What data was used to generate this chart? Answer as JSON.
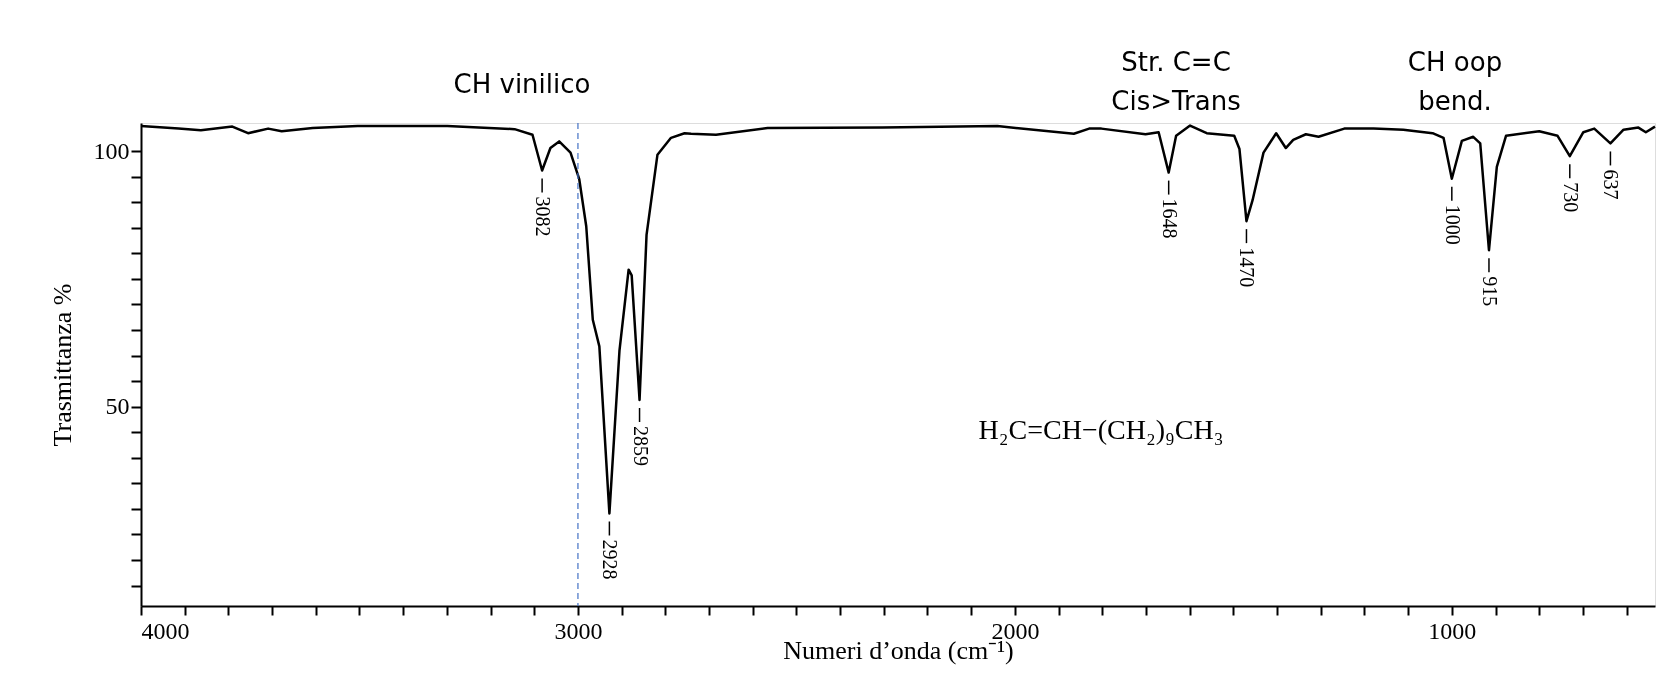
{
  "chart_data": {
    "type": "line",
    "xlabel": "Numeri d’onda (cm⁻¹)",
    "ylabel": "Trasmittanza %",
    "x": [
      4000,
      3914,
      3863,
      3791,
      3755,
      3709,
      3678,
      3607,
      3504,
      3299,
      3145,
      3104,
      3082,
      3063,
      3043,
      3017,
      2997,
      2981,
      2966,
      2951,
      2928,
      2905,
      2884,
      2877,
      2859,
      2843,
      2818,
      2787,
      2756,
      2741,
      2684,
      2566,
      2303,
      2040,
      1865,
      1830,
      1802,
      1701,
      1671,
      1648,
      1631,
      1599,
      1561,
      1498,
      1486,
      1470,
      1456,
      1431,
      1402,
      1380,
      1363,
      1334,
      1305,
      1246,
      1179,
      1111,
      1044,
      1019,
      1000,
      977,
      951,
      935,
      915,
      897,
      876,
      800,
      758,
      730,
      699,
      674,
      637,
      607,
      573,
      556,
      535
    ],
    "series": [
      {
        "color": "#000000",
        "values": [
          104.9,
          104.4,
          104.1,
          104.8,
          103.5,
          104.4,
          103.9,
          104.5,
          104.9,
          104.9,
          104.3,
          103.2,
          96.2,
          100.6,
          101.9,
          99.7,
          94.5,
          85.3,
          67.0,
          61.8,
          29.1,
          60.9,
          76.8,
          75.7,
          51.3,
          83.6,
          99.3,
          102.6,
          103.5,
          103.4,
          103.2,
          104.5,
          104.6,
          104.9,
          103.4,
          104.4,
          104.4,
          103.3,
          103.7,
          95.8,
          103.0,
          105.0,
          103.5,
          103.0,
          100.4,
          86.3,
          90.4,
          99.7,
          103.5,
          100.6,
          102.2,
          103.3,
          102.8,
          104.4,
          104.4,
          104.2,
          103.5,
          102.6,
          94.6,
          102.0,
          102.8,
          101.5,
          80.6,
          96.9,
          103.0,
          103.9,
          103.0,
          99.0,
          103.7,
          104.4,
          101.5,
          104.2,
          104.6,
          103.7,
          104.8
        ]
      }
    ],
    "xlim": [
      4000,
      535
    ],
    "xticks": [
      4000,
      {
        "value": 3900,
        "label": null
      },
      {
        "value": 3800,
        "label": null
      },
      {
        "value": 3700,
        "label": null
      },
      {
        "value": 3600,
        "label": null
      },
      {
        "value": 3500,
        "label": null
      },
      {
        "value": 3400,
        "label": null
      },
      {
        "value": 3300,
        "label": null
      },
      {
        "value": 3200,
        "label": null
      },
      {
        "value": 3100,
        "label": null
      },
      3000,
      {
        "value": 2900,
        "label": null
      },
      {
        "value": 2800,
        "label": null
      },
      {
        "value": 2700,
        "label": null
      },
      {
        "value": 2600,
        "label": null
      },
      {
        "value": 2500,
        "label": null
      },
      {
        "value": 2400,
        "label": null
      },
      {
        "value": 2300,
        "label": null
      },
      {
        "value": 2200,
        "label": null
      },
      {
        "value": 2100,
        "label": null
      },
      2000,
      {
        "value": 1900,
        "label": null
      },
      {
        "value": 1800,
        "label": null
      },
      {
        "value": 1700,
        "label": null
      },
      {
        "value": 1600,
        "label": null
      },
      {
        "value": 1500,
        "label": null
      },
      {
        "value": 1400,
        "label": null
      },
      {
        "value": 1300,
        "label": null
      },
      {
        "value": 1200,
        "label": null
      },
      {
        "value": 1100,
        "label": null
      },
      1000,
      {
        "value": 900,
        "label": null
      },
      {
        "value": 800,
        "label": null
      },
      {
        "value": 700,
        "label": null
      },
      {
        "value": 600,
        "label": null
      }
    ],
    "ylim": [
      11,
      105.5
    ],
    "yticks": [
      {
        "value": 15,
        "label": null
      },
      {
        "value": 20,
        "label": null
      },
      {
        "value": 25,
        "label": null
      },
      {
        "value": 30,
        "label": null
      },
      {
        "value": 35,
        "label": null
      },
      {
        "value": 40,
        "label": null
      },
      {
        "value": 45,
        "label": null
      },
      50,
      {
        "value": 55,
        "label": null
      },
      {
        "value": 60,
        "label": null
      },
      {
        "value": 65,
        "label": null
      },
      {
        "value": 70,
        "label": null
      },
      {
        "value": 75,
        "label": null
      },
      {
        "value": 80,
        "label": null
      },
      {
        "value": 85,
        "label": null
      },
      {
        "value": 90,
        "label": null
      },
      {
        "value": 95,
        "label": null
      },
      100
    ],
    "grid": false,
    "marker": "none",
    "line_style": "solid",
    "ref_lines": [
      {
        "axis": "x",
        "value": 3000,
        "color": "#4472c4",
        "line_style": "dashed"
      }
    ],
    "annotations": [
      {
        "text": "3082",
        "x": 3082,
        "y": 96.2
      },
      {
        "text": "2928",
        "x": 2928,
        "y": 29.1
      },
      {
        "text": "2859",
        "x": 2859,
        "y": 51.3
      },
      {
        "text": "1648",
        "x": 1648,
        "y": 95.8
      },
      {
        "text": "1470",
        "x": 1470,
        "y": 86.3
      },
      {
        "text": "1000",
        "x": 1000,
        "y": 94.6
      },
      {
        "text": "915",
        "x": 915,
        "y": 80.6
      },
      {
        "text": "730",
        "x": 730,
        "y": 99.0
      },
      {
        "text": "637",
        "x": 637,
        "y": 101.5
      },
      "CH vinilico",
      "Str. C=C\nCis>Trans",
      "CH oop\nbend.",
      "H₂C=CH−(CH₂)₉CH₃"
    ]
  }
}
